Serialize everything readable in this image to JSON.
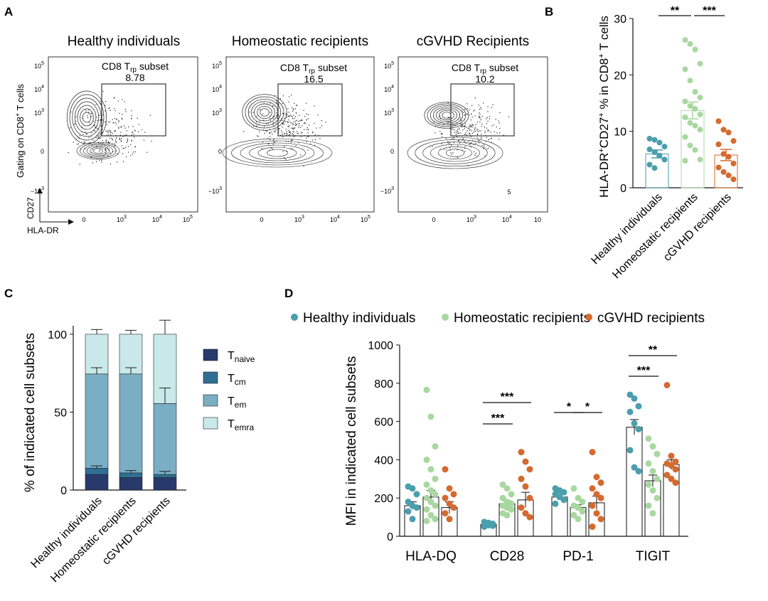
{
  "panel_labels": {
    "a": "A",
    "b": "B",
    "c": "C",
    "d": "D"
  },
  "panelA": {
    "titles": [
      "Healthy individuals",
      "Homeostatic recipients",
      "cGVHD Recipients"
    ],
    "gate_name": "CD8 T",
    "gate_sub": "rp",
    "gate_suffix": " subset",
    "gate_values": [
      "8.78",
      "16.5",
      "10.2"
    ],
    "ylabel": "Gating on CD8",
    "ylabel_sup": "+",
    "ylabel_end": " T cells",
    "axis_x_name": "HLA-DR",
    "axis_y_name": "CD27",
    "y_ticks": [
      "10",
      "10",
      "10",
      "0",
      "−10"
    ],
    "y_tick_exp": [
      "5",
      "4",
      "3",
      "",
      "3"
    ],
    "x_ticks": [
      "0",
      "10",
      "10",
      "10"
    ],
    "x_tick_exp": [
      "",
      "3",
      "4",
      "5"
    ],
    "panel3_x_last": "10",
    "panel3_extra": "5"
  },
  "chart_data": [
    {
      "id": "B",
      "type": "bar",
      "categories": [
        "Healthy individuals",
        "Homeostatic recipients",
        "cGVHD recipients"
      ],
      "values": [
        6.0,
        13.7,
        5.8
      ],
      "errors": [
        0.7,
        1.5,
        1.0
      ],
      "points": [
        [
          8.7,
          8.5,
          8.0,
          7.3,
          6.8,
          6.3,
          5.7,
          5.0,
          4.1,
          3.5
        ],
        [
          26.2,
          25.5,
          24.5,
          22.0,
          21.0,
          19.0,
          17.0,
          16.0,
          15.3,
          14.5,
          14.0,
          13.0,
          12.5,
          11.5,
          11.0,
          10.3,
          9.0,
          7.5,
          6.7,
          5.0,
          4.8
        ],
        [
          11.8,
          10.3,
          9.8,
          8.3,
          7.7,
          6.0,
          5.5,
          4.3,
          3.6,
          2.8,
          2.2,
          1.5
        ]
      ],
      "colors": [
        "#4a9ead",
        "#a8d8a0",
        "#d56a2e"
      ],
      "ylabel": "HLA-DR⁺CD27⁺ % in CD8⁺ T cells",
      "ylim": [
        0,
        30
      ],
      "yticks": [
        0,
        10,
        20,
        30
      ],
      "significance": [
        {
          "from": 0,
          "to": 1,
          "label": "**"
        },
        {
          "from": 1,
          "to": 2,
          "label": "***"
        }
      ]
    },
    {
      "id": "C",
      "type": "stacked-bar",
      "categories": [
        "Healthy individuals",
        "Homeostatic recipients",
        "cGVHD recipients"
      ],
      "series": [
        {
          "name": "T",
          "sub": "naive",
          "values": [
            10,
            8,
            8
          ],
          "color": "#283a6b"
        },
        {
          "name": "T",
          "sub": "cm",
          "values": [
            4,
            3,
            2
          ],
          "color": "#2f6f93"
        },
        {
          "name": "T",
          "sub": "em",
          "values": [
            60.5,
            63.5,
            45.5
          ],
          "color": "#7aaec4"
        },
        {
          "name": "T",
          "sub": "emra",
          "values": [
            25.5,
            25.5,
            44.5
          ],
          "color": "#c9e8ea"
        }
      ],
      "errors_top": [
        3,
        2.5,
        9
      ],
      "errors_em": [
        4,
        4,
        10
      ],
      "errors_cm": [
        1.5,
        1.5,
        2
      ],
      "ylabel": "% of indicated cell subsets",
      "ylim": [
        0,
        110
      ],
      "yticks": [
        0,
        50,
        100
      ]
    },
    {
      "id": "D",
      "type": "bar",
      "categories": [
        "HLA-DQ",
        "CD28",
        "PD-1",
        "TIGIT"
      ],
      "legend": [
        "Healthy individuals",
        "Homeostatic recipients",
        "cGVHD recipients"
      ],
      "colors": [
        "#4a9ead",
        "#a8d8a0",
        "#d56a2e"
      ],
      "series": [
        {
          "name": "Healthy individuals",
          "values": [
            160,
            62,
            205,
            570
          ],
          "errors": [
            20,
            5,
            15,
            40
          ],
          "points": [
            [
              260,
              250,
              220,
              180,
              160,
              150,
              130,
              90
            ],
            [
              75,
              70,
              65,
              60,
              58,
              55,
              50
            ],
            [
              250,
              240,
              230,
              220,
              205,
              190,
              170
            ],
            [
              740,
              720,
              680,
              650,
              590,
              560,
              450,
              360,
              340
            ]
          ]
        },
        {
          "name": "Homeostatic recipients",
          "values": [
            205,
            170,
            150,
            290
          ],
          "errors": [
            35,
            15,
            15,
            30
          ],
          "points": [
            [
              765,
              625,
              470,
              400,
              350,
              300,
              270,
              240,
              220,
              200,
              180,
              160,
              140,
              110,
              90,
              80
            ],
            [
              270,
              250,
              220,
              200,
              180,
              170,
              160,
              150,
              140,
              120,
              110
            ],
            [
              250,
              200,
              180,
              160,
              150,
              130,
              110,
              90
            ],
            [
              510,
              470,
              430,
              380,
              340,
              300,
              270,
              240,
              200,
              160,
              120
            ]
          ]
        },
        {
          "name": "cGVHD recipients",
          "values": [
            150,
            190,
            175,
            375
          ],
          "errors": [
            30,
            40,
            35,
            25
          ],
          "points": [
            [
              350,
              250,
              220,
              200,
              170,
              150,
              120,
              90
            ],
            [
              440,
              390,
              350,
              300,
              260,
              200,
              150,
              120,
              100
            ],
            [
              440,
              310,
              280,
              250,
              220,
              200,
              160,
              120,
              90,
              50
            ],
            [
              790,
              420,
              390,
              380,
              370,
              350,
              320,
              300,
              280
            ]
          ]
        }
      ],
      "ylabel": "MFI in indicated cell subsets",
      "ylim": [
        0,
        1000
      ],
      "yticks": [
        0,
        200,
        400,
        600,
        800,
        1000
      ],
      "significance": [
        {
          "group": 1,
          "from": 0,
          "to": 2,
          "label": "***",
          "level": 2
        },
        {
          "group": 1,
          "from": 0,
          "to": 1,
          "label": "***",
          "level": 1
        },
        {
          "group": 2,
          "from": 0,
          "to": 1,
          "label": "*",
          "level": 1
        },
        {
          "group": 2,
          "from": 1,
          "to": 2,
          "label": "*",
          "level": 1
        },
        {
          "group": 3,
          "from": 0,
          "to": 2,
          "label": "**",
          "level": 2
        },
        {
          "group": 3,
          "from": 0,
          "to": 1,
          "label": "***",
          "level": 1
        }
      ]
    }
  ]
}
